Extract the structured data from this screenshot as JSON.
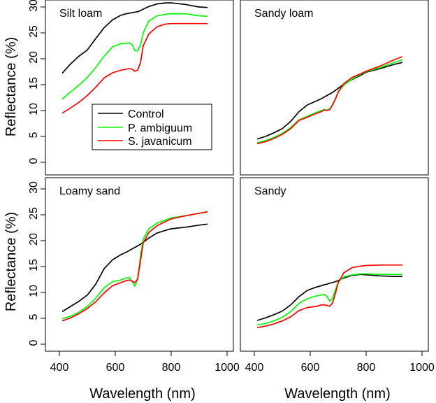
{
  "chart_data": {
    "type": "line",
    "xlabel": "Wavelength (nm)",
    "ylabel": "Reflectance (%)",
    "xlim": [
      400,
      1000
    ],
    "ylim": [
      0,
      30
    ],
    "xticks": [
      400,
      600,
      800,
      1000
    ],
    "yticks": [
      0,
      5,
      10,
      15,
      20,
      25,
      30
    ],
    "x": [
      410,
      440,
      470,
      500,
      530,
      560,
      590,
      620,
      640,
      650,
      660,
      670,
      680,
      690,
      700,
      720,
      750,
      780,
      800,
      850,
      900,
      930
    ],
    "legend": {
      "panel": "Silt loam",
      "entries": [
        {
          "name": "Control",
          "color": "#000000"
        },
        {
          "name": "P. ambiguum",
          "color": "#00ff00"
        },
        {
          "name": "S. javanicum",
          "color": "#ff0000"
        }
      ]
    },
    "panels": [
      {
        "title": "Silt loam",
        "series": [
          {
            "name": "Control",
            "color": "#000000",
            "values": [
              17.2,
              19.0,
              20.5,
              21.7,
              23.9,
              26.0,
              27.5,
              28.4,
              28.7,
              28.8,
              28.9,
              29.0,
              29.1,
              29.3,
              29.6,
              30.1,
              30.6,
              30.8,
              30.8,
              30.5,
              30.0,
              29.9
            ]
          },
          {
            "name": "P. ambiguum",
            "color": "#00ff00",
            "values": [
              12.2,
              13.6,
              14.9,
              16.4,
              18.3,
              20.5,
              22.3,
              22.9,
              23.0,
              23.1,
              22.7,
              21.6,
              21.5,
              22.6,
              25.0,
              27.3,
              28.3,
              28.6,
              28.7,
              28.7,
              28.3,
              28.2
            ]
          },
          {
            "name": "S. javanicum",
            "color": "#ff0000",
            "values": [
              9.5,
              10.5,
              11.6,
              12.9,
              14.5,
              16.3,
              17.3,
              17.8,
              18.0,
              18.1,
              18.0,
              17.6,
              17.8,
              19.2,
              22.5,
              24.8,
              26.2,
              26.7,
              26.8,
              26.8,
              26.8,
              26.8
            ]
          }
        ]
      },
      {
        "title": "Sandy loam",
        "series": [
          {
            "name": "Control",
            "color": "#000000",
            "values": [
              4.5,
              5.0,
              5.7,
              6.5,
              7.9,
              9.8,
              11.1,
              11.8,
              12.3,
              12.6,
              12.9,
              13.2,
              13.5,
              13.9,
              14.3,
              15.1,
              16.0,
              16.8,
              17.4,
              18.1,
              18.9,
              19.3
            ]
          },
          {
            "name": "P. ambiguum",
            "color": "#00ff00",
            "values": [
              3.8,
              4.2,
              4.8,
              5.6,
              6.7,
              8.2,
              8.9,
              9.6,
              10.0,
              10.2,
              10.1,
              10.3,
              11.2,
              12.3,
              13.5,
              14.9,
              16.1,
              17.0,
              17.5,
              18.3,
              19.3,
              19.8
            ]
          },
          {
            "name": "S. javanicum",
            "color": "#ff0000",
            "values": [
              3.6,
              4.0,
              4.6,
              5.4,
              6.5,
              8.1,
              8.7,
              9.4,
              9.8,
              10.1,
              10.0,
              10.2,
              11.1,
              12.2,
              13.6,
              15.2,
              16.4,
              17.1,
              17.6,
              18.6,
              19.8,
              20.4
            ]
          }
        ]
      },
      {
        "title": "Loamy sand",
        "series": [
          {
            "name": "Control",
            "color": "#000000",
            "values": [
              6.3,
              7.3,
              8.3,
              9.5,
              11.6,
              14.6,
              16.3,
              17.3,
              17.8,
              18.1,
              18.4,
              18.7,
              19.0,
              19.3,
              19.7,
              20.5,
              21.5,
              22.0,
              22.3,
              22.6,
              23.0,
              23.2
            ]
          },
          {
            "name": "P. ambiguum",
            "color": "#00ff00",
            "values": [
              4.9,
              5.4,
              6.2,
              7.3,
              8.9,
              10.9,
              12.1,
              12.4,
              12.8,
              12.9,
              12.2,
              11.2,
              12.6,
              17.0,
              20.3,
              22.3,
              23.4,
              24.0,
              24.4,
              24.8,
              25.3,
              25.5
            ]
          },
          {
            "name": "S. javanicum",
            "color": "#ff0000",
            "values": [
              4.5,
              5.1,
              5.9,
              6.9,
              8.2,
              9.9,
              11.3,
              11.9,
              12.3,
              12.4,
              12.2,
              11.9,
              12.6,
              16.0,
              19.6,
              21.6,
              22.9,
              23.7,
              24.2,
              24.8,
              25.3,
              25.6
            ]
          }
        ]
      },
      {
        "title": "Sandy",
        "series": [
          {
            "name": "Control",
            "color": "#000000",
            "values": [
              4.6,
              5.1,
              5.7,
              6.4,
              7.6,
              9.2,
              10.4,
              11.0,
              11.3,
              11.5,
              11.6,
              11.8,
              11.9,
              12.1,
              12.3,
              12.8,
              13.3,
              13.5,
              13.4,
              13.2,
              13.1,
              13.1
            ]
          },
          {
            "name": "P. ambiguum",
            "color": "#00ff00",
            "values": [
              3.7,
              4.0,
              4.5,
              5.2,
              6.3,
              7.9,
              8.8,
              9.3,
              9.5,
              9.6,
              9.2,
              8.3,
              8.9,
              10.5,
              12.0,
              13.0,
              13.4,
              13.6,
              13.6,
              13.5,
              13.5,
              13.5
            ]
          },
          {
            "name": "S. javanicum",
            "color": "#ff0000",
            "values": [
              3.2,
              3.5,
              3.9,
              4.5,
              5.3,
              6.5,
              7.1,
              7.3,
              7.6,
              7.6,
              7.5,
              7.3,
              8.0,
              9.8,
              11.9,
              13.8,
              14.8,
              15.1,
              15.2,
              15.3,
              15.3,
              15.3
            ]
          }
        ]
      }
    ]
  }
}
